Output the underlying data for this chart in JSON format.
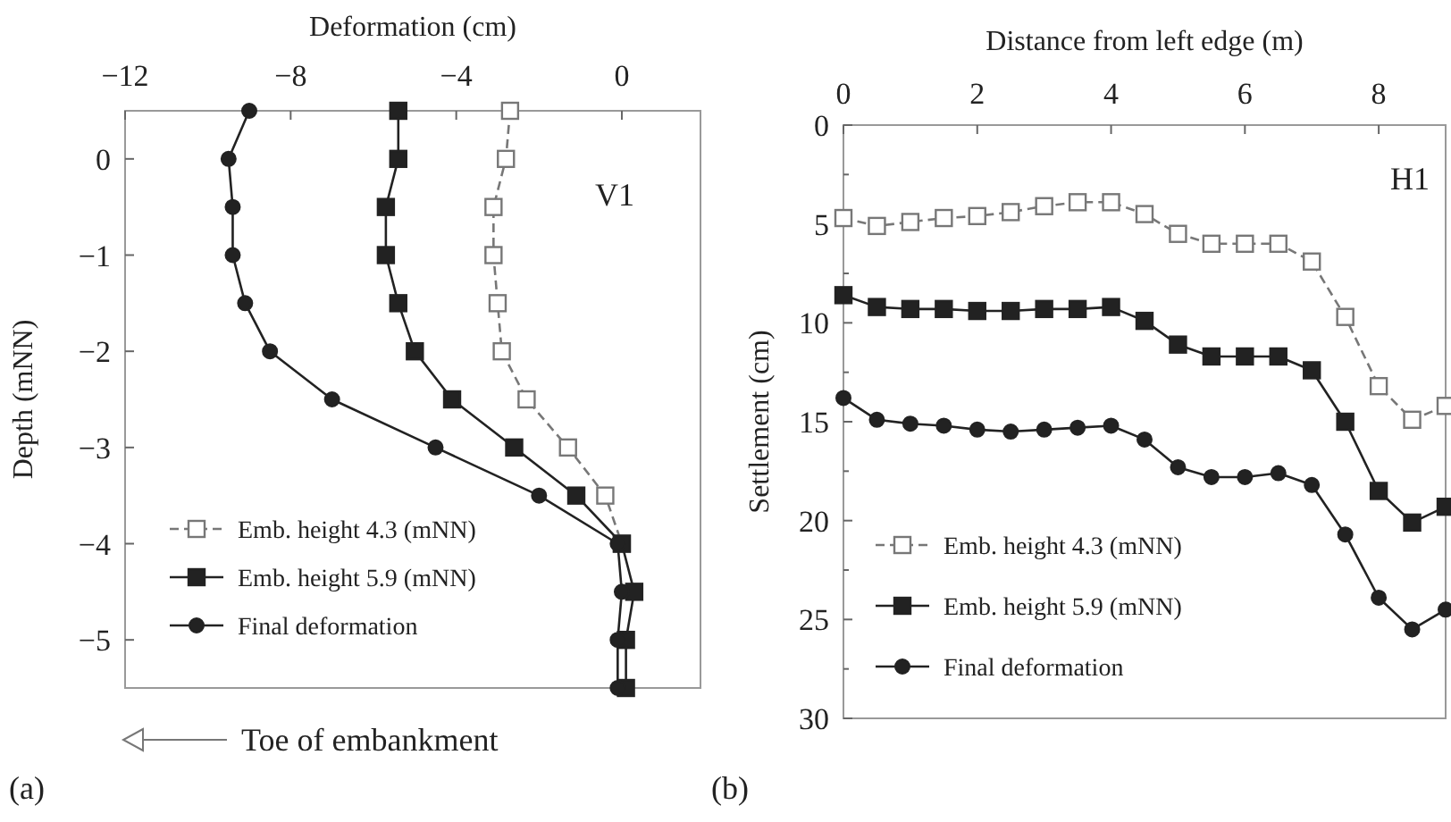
{
  "chart_data": [
    {
      "type": "line",
      "orientation": "horizontal",
      "xlabel": "Deformation (cm)",
      "ylabel": "Depth (mNN)",
      "xlim": [
        -12,
        1.9
      ],
      "xticks": [
        {
          "value": -12,
          "label": "−12"
        },
        {
          "value": -8,
          "label": "−8"
        },
        {
          "value": -4,
          "label": "−4"
        },
        0
      ],
      "ylim": [
        -5.5,
        0.5
      ],
      "yticks": [
        0,
        {
          "value": -1,
          "label": "−1"
        },
        {
          "value": -2,
          "label": "−2"
        },
        {
          "value": -3,
          "label": "−3"
        },
        {
          "value": -4,
          "label": "−4"
        },
        {
          "value": -5,
          "label": "−5"
        }
      ],
      "grid": false,
      "legend": "bottom left",
      "annotations": [
        "V1",
        "Toe of embankment",
        "(a)"
      ],
      "x": [
        0.5,
        0,
        -0.5,
        -1,
        -1.5,
        -2,
        -2.5,
        -3,
        -3.5,
        -4,
        -4.5,
        -5,
        -5.5
      ],
      "series": [
        {
          "name": "Emb. height 4.3 (mNN)",
          "color": "#777777",
          "marker": "square",
          "line_style": "dashed",
          "values": [
            -2.7,
            -2.8,
            -3.1,
            -3.1,
            -3.0,
            -2.9,
            -2.3,
            -1.3,
            -0.4,
            0,
            null,
            null,
            null
          ]
        },
        {
          "name": "Emb. height 5.9 (mNN)",
          "color": "#222222",
          "marker": "square",
          "line_style": "solid",
          "values": [
            -5.4,
            -5.4,
            -5.7,
            -5.7,
            -5.4,
            -5.0,
            -4.1,
            -2.6,
            -1.1,
            0,
            0.3,
            0.1,
            0.1
          ]
        },
        {
          "name": "Final deformation",
          "color": "#222222",
          "marker": "circle",
          "line_style": "solid",
          "values": [
            -9.0,
            -9.5,
            -9.4,
            -9.4,
            -9.1,
            -8.5,
            -7.0,
            -4.5,
            -2.0,
            -0.1,
            0,
            -0.1,
            -0.1
          ]
        }
      ]
    },
    {
      "type": "line",
      "xlabel": "Distance from left edge (m)",
      "ylabel": "Settlement (cm)",
      "xlim": [
        0,
        9
      ],
      "xticks": [
        0,
        2,
        4,
        6,
        8
      ],
      "ylim": [
        30,
        0
      ],
      "yticks": [
        0,
        {
          "value": 2.5,
          "label": null
        },
        5,
        {
          "value": 7.5,
          "label": null
        },
        10,
        {
          "value": 12.5,
          "label": null
        },
        15,
        {
          "value": 17.5,
          "label": null
        },
        20,
        {
          "value": 22.5,
          "label": null
        },
        25,
        {
          "value": 27.5,
          "label": null
        },
        30
      ],
      "grid": false,
      "legend": "bottom left",
      "annotations": [
        "H1",
        "(b)"
      ],
      "x": [
        0,
        0.5,
        1,
        1.5,
        2,
        2.5,
        3,
        3.5,
        4,
        4.5,
        5,
        5.5,
        6,
        6.5,
        7,
        7.5,
        8,
        8.5,
        9
      ],
      "series": [
        {
          "name": "Emb. height 4.3 (mNN)",
          "color": "#777777",
          "marker": "square",
          "line_style": "dashed",
          "values": [
            4.7,
            5.1,
            4.9,
            4.7,
            4.6,
            4.4,
            4.1,
            3.9,
            3.9,
            4.5,
            5.5,
            6.0,
            6.0,
            6.0,
            6.9,
            9.7,
            13.2,
            14.9,
            14.2
          ]
        },
        {
          "name": "Emb. height 5.9 (mNN)",
          "color": "#222222",
          "marker": "square",
          "line_style": "solid",
          "values": [
            8.6,
            9.2,
            9.3,
            9.3,
            9.4,
            9.4,
            9.3,
            9.3,
            9.2,
            9.9,
            11.1,
            11.7,
            11.7,
            11.7,
            12.4,
            15.0,
            18.5,
            20.1,
            19.3
          ]
        },
        {
          "name": "Final deformation",
          "color": "#222222",
          "marker": "circle",
          "line_style": "solid",
          "values": [
            13.8,
            14.9,
            15.1,
            15.2,
            15.4,
            15.5,
            15.4,
            15.3,
            15.2,
            15.9,
            17.3,
            17.8,
            17.8,
            17.6,
            18.2,
            20.7,
            23.9,
            25.5,
            24.5
          ]
        }
      ]
    }
  ]
}
